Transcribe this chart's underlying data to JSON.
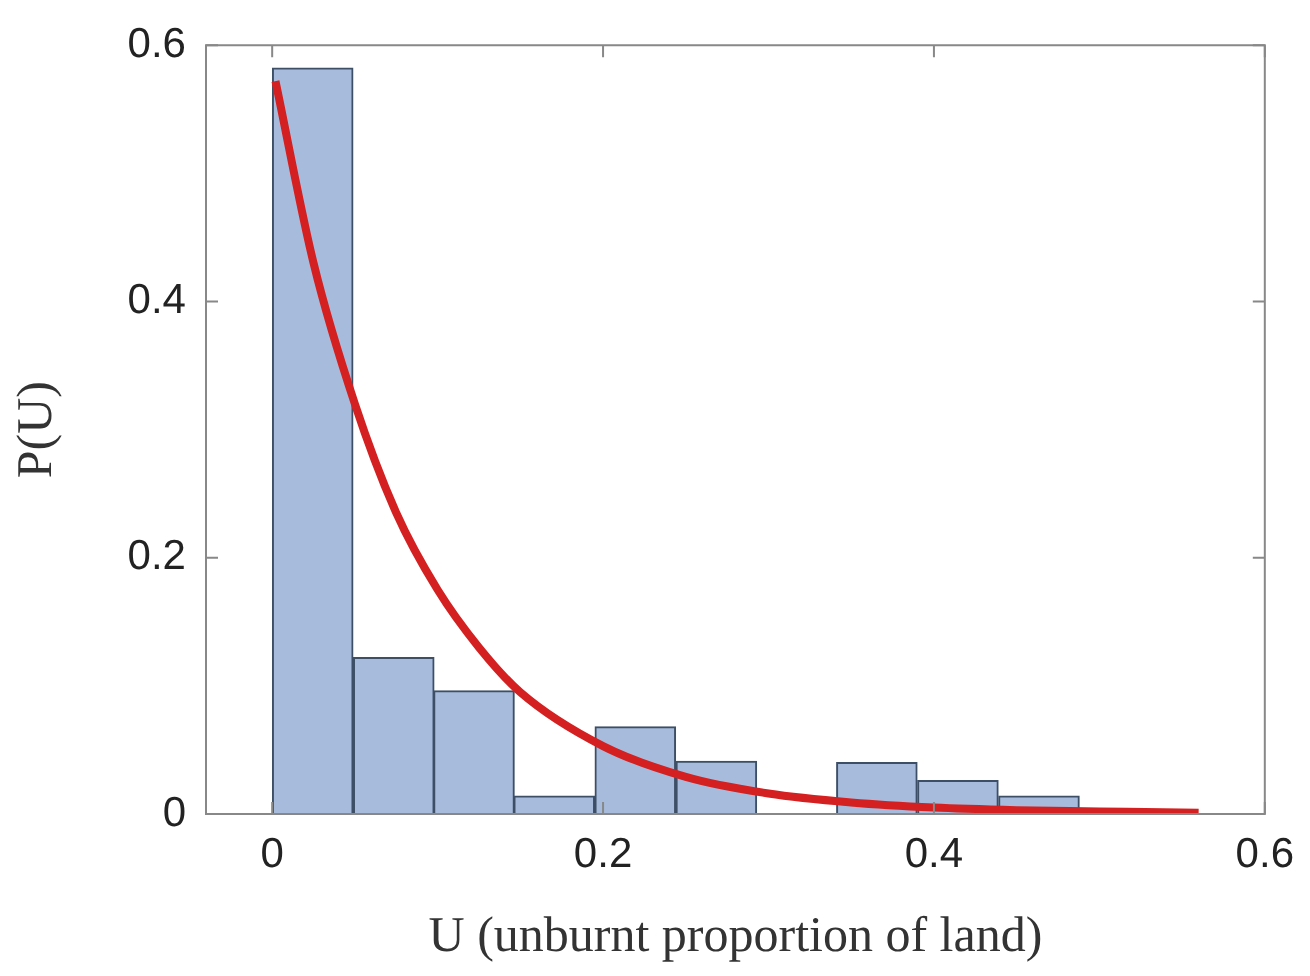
{
  "chart_data": {
    "type": "histogram",
    "xlabel": "U (unburnt proportion of land)",
    "ylabel": "P(U)",
    "bins": [
      0,
      0.049,
      0.098,
      0.146,
      0.195,
      0.244,
      0.293,
      0.341,
      0.39,
      0.439,
      0.488
    ],
    "values": [
      0.582,
      0.122,
      0.096,
      0.014,
      0.068,
      0.041,
      0,
      0.04,
      0.026,
      0.014
    ],
    "color": "#a7bcdc",
    "series": [
      {
        "type": "line",
        "color": "#d42020",
        "x": [
          0.002,
          0.025,
          0.05,
          0.075,
          0.1,
          0.125,
          0.15,
          0.2,
          0.25,
          0.3,
          0.35,
          0.4,
          0.45,
          0.5,
          0.56
        ],
        "values": [
          0.572,
          0.43,
          0.32,
          0.235,
          0.175,
          0.13,
          0.095,
          0.053,
          0.029,
          0.016,
          0.009,
          0.005,
          0.003,
          0.002,
          0.001
        ]
      }
    ],
    "xlim": [
      -0.04,
      0.6
    ],
    "xticks": [
      0,
      0.2,
      0.4,
      0.6
    ],
    "ylim": [
      0,
      0.6
    ],
    "yticks": [
      0,
      0.2,
      0.4,
      0.6
    ],
    "grid": false,
    "legend": false,
    "marker": "none",
    "line_style": "solid"
  }
}
